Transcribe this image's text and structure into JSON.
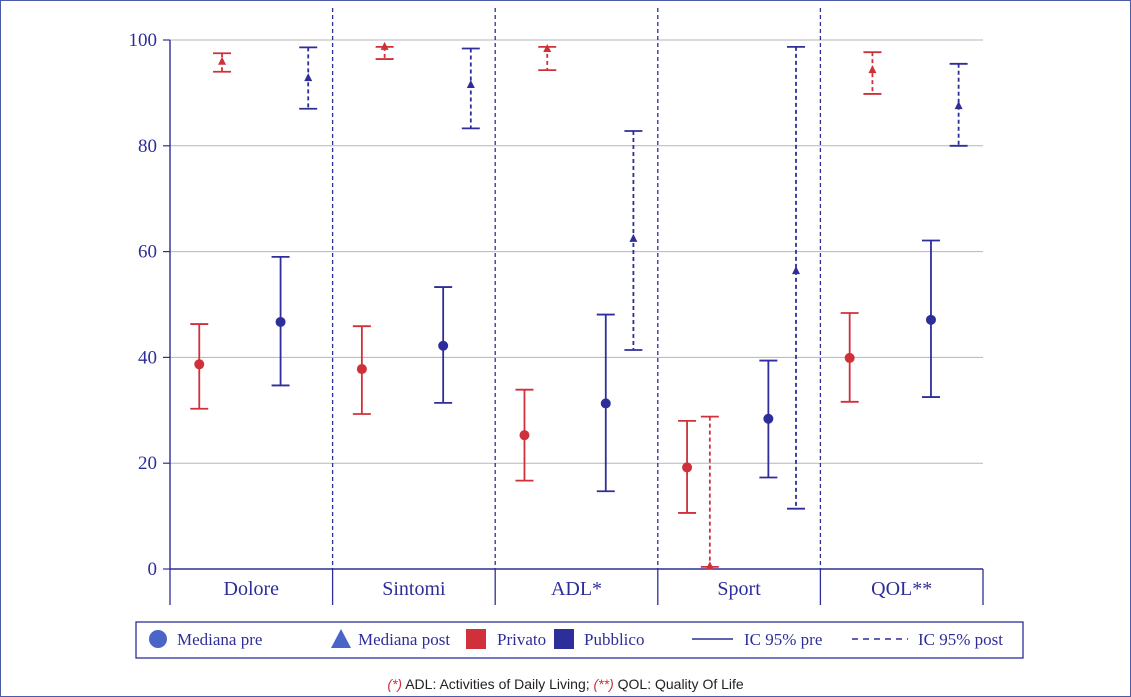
{
  "colors": {
    "privato": "#d0303a",
    "pubblico": "#2e2e9a",
    "grid": "#b5b5b5",
    "frame": "#4a5ba8"
  },
  "chart_data": {
    "type": "scatter",
    "subtype": "error-bar",
    "ylim": [
      0,
      100
    ],
    "yticks": [
      0,
      20,
      40,
      60,
      80,
      100
    ],
    "grid": true,
    "categories": [
      "Dolore",
      "Sintomi",
      "ADL*",
      "Sport",
      "QOL**"
    ],
    "series": [
      {
        "name": "Privato",
        "color_key": "privato",
        "marker": "circle",
        "line": "solid",
        "median": [
          38.7,
          37.8,
          25.3,
          19.2,
          39.9
        ],
        "ci_low": [
          30.3,
          29.3,
          16.7,
          10.6,
          31.6
        ],
        "ci_high": [
          46.3,
          45.9,
          33.9,
          28.0,
          48.4
        ]
      },
      {
        "name": "Privato",
        "color_key": "privato",
        "marker": "triangle",
        "line": "dashed",
        "median": [
          95.9,
          98.7,
          98.3,
          0.5,
          94.3
        ],
        "ci_low": [
          94.0,
          96.4,
          94.3,
          0.4,
          89.8
        ],
        "ci_high": [
          97.5,
          98.7,
          98.7,
          28.8,
          97.7
        ]
      },
      {
        "name": "Pubblico",
        "color_key": "pubblico",
        "marker": "circle",
        "line": "solid",
        "median": [
          46.7,
          42.2,
          31.3,
          28.4,
          47.1
        ],
        "ci_low": [
          34.7,
          31.4,
          14.7,
          17.3,
          32.5
        ],
        "ci_high": [
          59.0,
          53.3,
          48.1,
          39.4,
          62.1
        ]
      },
      {
        "name": "Pubblico",
        "color_key": "pubblico",
        "marker": "triangle",
        "line": "dashed",
        "median": [
          92.8,
          91.5,
          62.4,
          56.3,
          87.5
        ],
        "ci_low": [
          87.0,
          83.3,
          41.4,
          11.4,
          80.0
        ],
        "ci_high": [
          98.6,
          98.4,
          82.8,
          98.7,
          95.5
        ]
      }
    ]
  },
  "legend": {
    "items": [
      {
        "label": "Mediana pre",
        "icon": "circle-marker-icon"
      },
      {
        "label": "Mediana post",
        "icon": "triangle-marker-icon"
      },
      {
        "label": "Privato",
        "icon": "red-square-icon"
      },
      {
        "label": "Pubblico",
        "icon": "blue-square-icon"
      },
      {
        "label": "IC 95% pre",
        "icon": "solid-line-icon"
      },
      {
        "label": "IC 95% post",
        "icon": "dashed-line-icon"
      }
    ]
  },
  "footnote": {
    "mark1": "(*)",
    "text1": " ADL:  Activities of Daily Living; ",
    "mark2": "(**)",
    "text2": " QOL: Quality Of Life"
  }
}
